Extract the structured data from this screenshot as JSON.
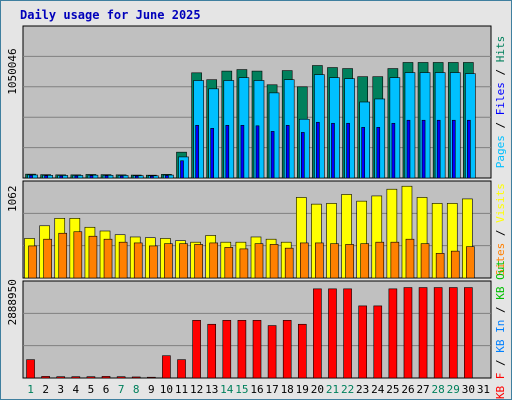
{
  "title": "Daily usage for June 2025",
  "chart_data": [
    {
      "type": "bar",
      "panel": "hits-files-pages",
      "categories": [
        "1",
        "2",
        "3",
        "4",
        "5",
        "6",
        "7",
        "8",
        "9",
        "10",
        "11",
        "12",
        "13",
        "14",
        "15",
        "16",
        "17",
        "18",
        "19",
        "20",
        "21",
        "22",
        "23",
        "24",
        "25",
        "26",
        "27",
        "28",
        "29",
        "30",
        "31"
      ],
      "y_tick_label": "1050046",
      "y_tick_value": 1050046,
      "ylim": [
        0,
        1500000
      ],
      "series": [
        {
          "name": "Hits",
          "color": "#00805c",
          "values": [
            38000,
            33000,
            31000,
            31000,
            35000,
            33000,
            31000,
            29000,
            28000,
            36000,
            255000,
            1038000,
            970000,
            1055000,
            1070000,
            1055000,
            920000,
            1060000,
            900000,
            1110000,
            1090000,
            1080000,
            1000000,
            1000000,
            1080000,
            1140000,
            1140000,
            1140000,
            1140000,
            1140000,
            0
          ]
        },
        {
          "name": "Files",
          "color": "#0000ff",
          "values": [
            25000,
            22000,
            20000,
            20000,
            23000,
            22000,
            20000,
            19000,
            18000,
            24000,
            170000,
            520000,
            490000,
            520000,
            520000,
            515000,
            460000,
            520000,
            450000,
            550000,
            540000,
            540000,
            500000,
            500000,
            540000,
            570000,
            570000,
            570000,
            570000,
            570000,
            0
          ]
        },
        {
          "name": "Pages",
          "color": "#00c0ff",
          "values": [
            30000,
            26000,
            25000,
            25000,
            28000,
            26000,
            25000,
            23000,
            22000,
            29000,
            208000,
            962000,
            880000,
            962000,
            990000,
            962000,
            840000,
            970000,
            580000,
            1020000,
            990000,
            980000,
            750000,
            780000,
            990000,
            1040000,
            1040000,
            1040000,
            1040000,
            1030000,
            0
          ]
        }
      ],
      "legend": [
        "Pages",
        "Files",
        "Hits"
      ]
    },
    {
      "type": "bar",
      "panel": "visits-sites",
      "categories": [
        "1",
        "2",
        "3",
        "4",
        "5",
        "6",
        "7",
        "8",
        "9",
        "10",
        "11",
        "12",
        "13",
        "14",
        "15",
        "16",
        "17",
        "18",
        "19",
        "20",
        "21",
        "22",
        "23",
        "24",
        "25",
        "26",
        "27",
        "28",
        "29",
        "30",
        "31"
      ],
      "y_tick_label": "1062",
      "y_tick_value": 1062,
      "ylim": [
        0,
        1300
      ],
      "series": [
        {
          "name": "Visits",
          "color": "#ffff00",
          "values": [
            530,
            700,
            800,
            800,
            680,
            630,
            580,
            550,
            540,
            530,
            500,
            480,
            570,
            480,
            480,
            550,
            520,
            480,
            1080,
            990,
            1000,
            1120,
            1030,
            1100,
            1190,
            1230,
            1080,
            1000,
            1000,
            1060,
            0
          ]
        },
        {
          "name": "Sites",
          "color": "#ff8000",
          "values": [
            430,
            520,
            600,
            620,
            560,
            520,
            480,
            470,
            430,
            460,
            460,
            450,
            470,
            410,
            390,
            460,
            450,
            400,
            470,
            470,
            460,
            450,
            460,
            480,
            480,
            520,
            460,
            330,
            360,
            420,
            0
          ]
        }
      ],
      "legend": [
        "Sites",
        "Visits"
      ]
    },
    {
      "type": "bar",
      "panel": "kbytes",
      "categories": [
        "1",
        "2",
        "3",
        "4",
        "5",
        "6",
        "7",
        "8",
        "9",
        "10",
        "11",
        "12",
        "13",
        "14",
        "15",
        "16",
        "17",
        "18",
        "19",
        "20",
        "21",
        "22",
        "23",
        "24",
        "25",
        "26",
        "27",
        "28",
        "29",
        "30",
        "31"
      ],
      "y_tick_label": "2888950",
      "y_tick_value": 2888950,
      "ylim": [
        0,
        3700000
      ],
      "series": [
        {
          "name": "KB F",
          "color": "#ff0000",
          "values": [
            700000,
            60000,
            50000,
            50000,
            50000,
            60000,
            50000,
            40000,
            30000,
            850000,
            700000,
            2200000,
            2050000,
            2200000,
            2200000,
            2200000,
            2000000,
            2200000,
            2050000,
            3400000,
            3400000,
            3400000,
            2750000,
            2750000,
            3400000,
            3450000,
            3450000,
            3450000,
            3450000,
            3450000,
            0
          ]
        },
        {
          "name": "KB In",
          "color": "#0080ff",
          "values": [
            0,
            0,
            0,
            0,
            0,
            0,
            0,
            0,
            0,
            0,
            0,
            0,
            0,
            0,
            0,
            0,
            0,
            0,
            0,
            0,
            0,
            0,
            0,
            0,
            0,
            0,
            0,
            0,
            0,
            0,
            0
          ]
        },
        {
          "name": "KB Out",
          "color": "#00c000",
          "values": [
            0,
            0,
            0,
            0,
            0,
            0,
            0,
            0,
            0,
            0,
            0,
            0,
            0,
            0,
            0,
            0,
            0,
            0,
            0,
            0,
            0,
            0,
            0,
            0,
            0,
            0,
            0,
            0,
            0,
            0,
            0
          ]
        }
      ],
      "legend": [
        "KB F",
        "KB In",
        "KB Out"
      ]
    }
  ],
  "day_label_colors": {
    "weekday": "#000000",
    "weekend": "#00805c"
  },
  "weekend_days": [
    "1",
    "7",
    "8",
    "14",
    "15",
    "21",
    "22",
    "28",
    "29"
  ],
  "panel_background": "#c0c0c0",
  "frame_background": "#e5e5e5"
}
